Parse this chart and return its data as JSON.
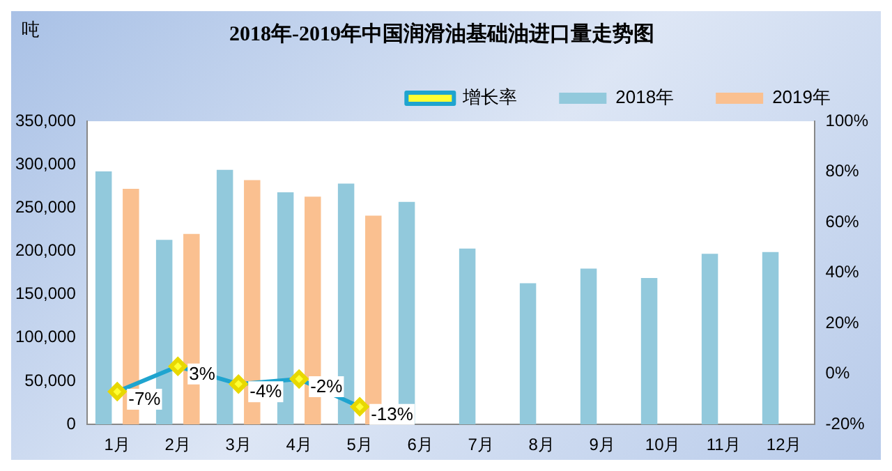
{
  "chart_data": {
    "type": "bar",
    "title": "2018年-2019年中国润滑油基础油进口量走势图",
    "ylabel": "吨",
    "categories": [
      "1月",
      "2月",
      "3月",
      "4月",
      "5月",
      "6月",
      "7月",
      "8月",
      "9月",
      "10月",
      "11月",
      "12月"
    ],
    "series": [
      {
        "name": "2018年",
        "color": "#92c9dc",
        "values": [
          292000,
          213000,
          294000,
          268000,
          278000,
          257000,
          203000,
          163000,
          180000,
          169000,
          197000,
          199000
        ]
      },
      {
        "name": "2019年",
        "color": "#fac090",
        "values": [
          272000,
          220000,
          282000,
          263000,
          241000,
          null,
          null,
          null,
          null,
          null,
          null,
          null
        ]
      },
      {
        "name": "增长率",
        "type": "line",
        "axis": "y2",
        "color": "#1fa4cf",
        "values": [
          -7,
          3,
          -4,
          -2,
          -13,
          null,
          null,
          null,
          null,
          null,
          null,
          null
        ],
        "value_labels": [
          "-7%",
          "3%",
          "-4%",
          "-2%",
          "-13%",
          null,
          null,
          null,
          null,
          null,
          null,
          null
        ]
      }
    ],
    "ylim": [
      0,
      350000
    ],
    "yticks": [
      {
        "value": 0,
        "label": "0"
      },
      {
        "value": 50000,
        "label": "50,000"
      },
      {
        "value": 100000,
        "label": "100,000"
      },
      {
        "value": 150000,
        "label": "150,000"
      },
      {
        "value": 200000,
        "label": "200,000"
      },
      {
        "value": 250000,
        "label": "250,000"
      },
      {
        "value": 300000,
        "label": "300,000"
      },
      {
        "value": 350000,
        "label": "350,000"
      }
    ],
    "y2lim": [
      -20,
      100
    ],
    "y2ticks": [
      {
        "value": -20,
        "label": "-20%"
      },
      {
        "value": 0,
        "label": "0%"
      },
      {
        "value": 20,
        "label": "20%"
      },
      {
        "value": 40,
        "label": "40%"
      },
      {
        "value": 60,
        "label": "60%"
      },
      {
        "value": 80,
        "label": "80%"
      },
      {
        "value": 100,
        "label": "100%"
      }
    ],
    "legend": "top",
    "marker": "diamond",
    "line_style": "solid",
    "grid": false
  }
}
